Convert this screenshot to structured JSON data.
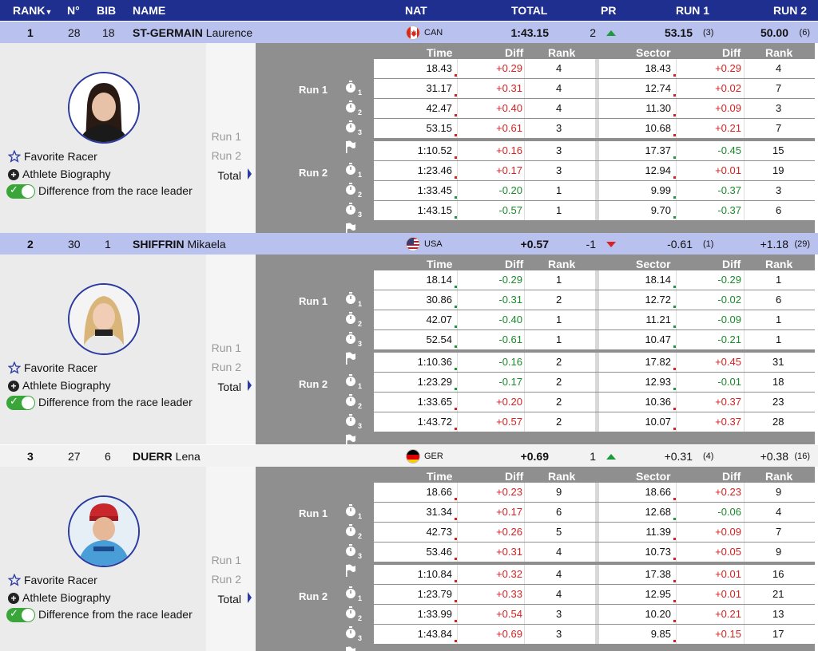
{
  "header": {
    "rank": "RANK",
    "no": "N°",
    "bib": "BIB",
    "name": "NAME",
    "nat": "NAT",
    "total": "TOTAL",
    "pr": "PR",
    "run1": "RUN 1",
    "run2": "RUN 2"
  },
  "labels": {
    "favorite": "Favorite Racer",
    "biography": "Athlete Biography",
    "difference": "Difference from the race leader",
    "run1": "Run 1",
    "run2": "Run 2",
    "total": "Total",
    "col_time": "Time",
    "col_diff": "Diff",
    "col_rank": "Rank",
    "col_sector": "Sector"
  },
  "athletes": [
    {
      "rank": "1",
      "no": "28",
      "bib": "18",
      "last": "ST-GERMAIN",
      "first": "Laurence",
      "nat": "CAN",
      "total": "1:43.15",
      "pr": "2",
      "pr_dir": "up",
      "run1": "53.15",
      "run1_rank": "(3)",
      "run2": "50.00",
      "run2_rank": "(6)",
      "splits": [
        {
          "time": "18.43",
          "diff": "+0.29",
          "rank": "4",
          "sector": "18.43",
          "sdiff": "+0.29",
          "srank": "4"
        },
        {
          "time": "31.17",
          "diff": "+0.31",
          "rank": "4",
          "sector": "12.74",
          "sdiff": "+0.02",
          "srank": "7"
        },
        {
          "time": "42.47",
          "diff": "+0.40",
          "rank": "4",
          "sector": "11.30",
          "sdiff": "+0.09",
          "srank": "3"
        },
        {
          "time": "53.15",
          "diff": "+0.61",
          "rank": "3",
          "sector": "10.68",
          "sdiff": "+0.21",
          "srank": "7"
        },
        {
          "time": "1:10.52",
          "diff": "+0.16",
          "rank": "3",
          "sector": "17.37",
          "sdiff": "-0.45",
          "srank": "15"
        },
        {
          "time": "1:23.46",
          "diff": "+0.17",
          "rank": "3",
          "sector": "12.94",
          "sdiff": "+0.01",
          "srank": "19"
        },
        {
          "time": "1:33.45",
          "diff": "-0.20",
          "rank": "1",
          "sector": "9.99",
          "sdiff": "-0.37",
          "srank": "3"
        },
        {
          "time": "1:43.15",
          "diff": "-0.57",
          "rank": "1",
          "sector": "9.70",
          "sdiff": "-0.37",
          "srank": "6"
        }
      ]
    },
    {
      "rank": "2",
      "no": "30",
      "bib": "1",
      "last": "SHIFFRIN",
      "first": "Mikaela",
      "nat": "USA",
      "total": "+0.57",
      "pr": "-1",
      "pr_dir": "down",
      "run1": "-0.61",
      "run1_rank": "(1)",
      "run2": "+1.18",
      "run2_rank": "(29)",
      "splits": [
        {
          "time": "18.14",
          "diff": "-0.29",
          "rank": "1",
          "sector": "18.14",
          "sdiff": "-0.29",
          "srank": "1"
        },
        {
          "time": "30.86",
          "diff": "-0.31",
          "rank": "2",
          "sector": "12.72",
          "sdiff": "-0.02",
          "srank": "6"
        },
        {
          "time": "42.07",
          "diff": "-0.40",
          "rank": "1",
          "sector": "11.21",
          "sdiff": "-0.09",
          "srank": "1"
        },
        {
          "time": "52.54",
          "diff": "-0.61",
          "rank": "1",
          "sector": "10.47",
          "sdiff": "-0.21",
          "srank": "1"
        },
        {
          "time": "1:10.36",
          "diff": "-0.16",
          "rank": "2",
          "sector": "17.82",
          "sdiff": "+0.45",
          "srank": "31"
        },
        {
          "time": "1:23.29",
          "diff": "-0.17",
          "rank": "2",
          "sector": "12.93",
          "sdiff": "-0.01",
          "srank": "18"
        },
        {
          "time": "1:33.65",
          "diff": "+0.20",
          "rank": "2",
          "sector": "10.36",
          "sdiff": "+0.37",
          "srank": "23"
        },
        {
          "time": "1:43.72",
          "diff": "+0.57",
          "rank": "2",
          "sector": "10.07",
          "sdiff": "+0.37",
          "srank": "28"
        }
      ]
    },
    {
      "rank": "3",
      "no": "27",
      "bib": "6",
      "last": "DUERR",
      "first": "Lena",
      "nat": "GER",
      "total": "+0.69",
      "pr": "1",
      "pr_dir": "up",
      "run1": "+0.31",
      "run1_rank": "(4)",
      "run2": "+0.38",
      "run2_rank": "(16)",
      "splits": [
        {
          "time": "18.66",
          "diff": "+0.23",
          "rank": "9",
          "sector": "18.66",
          "sdiff": "+0.23",
          "srank": "9"
        },
        {
          "time": "31.34",
          "diff": "+0.17",
          "rank": "6",
          "sector": "12.68",
          "sdiff": "-0.06",
          "srank": "4"
        },
        {
          "time": "42.73",
          "diff": "+0.26",
          "rank": "5",
          "sector": "11.39",
          "sdiff": "+0.09",
          "srank": "7"
        },
        {
          "time": "53.46",
          "diff": "+0.31",
          "rank": "4",
          "sector": "10.73",
          "sdiff": "+0.05",
          "srank": "9"
        },
        {
          "time": "1:10.84",
          "diff": "+0.32",
          "rank": "4",
          "sector": "17.38",
          "sdiff": "+0.01",
          "srank": "16"
        },
        {
          "time": "1:23.79",
          "diff": "+0.33",
          "rank": "4",
          "sector": "12.95",
          "sdiff": "+0.01",
          "srank": "21"
        },
        {
          "time": "1:33.99",
          "diff": "+0.54",
          "rank": "3",
          "sector": "10.20",
          "sdiff": "+0.21",
          "srank": "13"
        },
        {
          "time": "1:43.84",
          "diff": "+0.69",
          "rank": "3",
          "sector": "9.85",
          "sdiff": "+0.15",
          "srank": "17"
        }
      ]
    }
  ],
  "icons": {
    "stopwatch": "stopwatch-icon",
    "flag": "finish-flag-icon",
    "star": "star-outline-icon",
    "plus": "plus-circle-icon",
    "toggle": "toggle-on-icon"
  },
  "colors": {
    "header_bg": "#1f2f8f",
    "highlight_row": "#b9c1ef",
    "positive_diff": "#d62222",
    "negative_diff": "#1a8a2a",
    "toggle_on": "#3aa63a"
  }
}
